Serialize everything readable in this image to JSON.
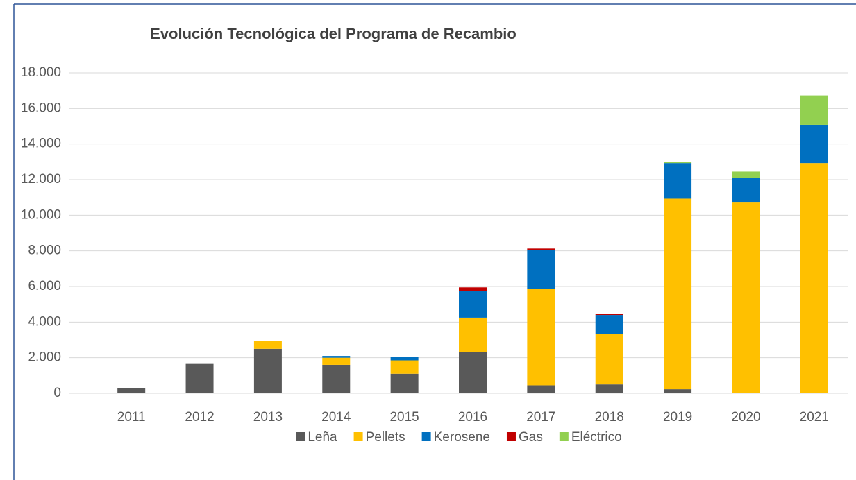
{
  "chart_data": {
    "type": "bar",
    "stacked": true,
    "title": "Evolución Tecnológica del Programa de Recambio",
    "categories": [
      "2011",
      "2012",
      "2013",
      "2014",
      "2015",
      "2016",
      "2017",
      "2018",
      "2019",
      "2020",
      "2021"
    ],
    "series": [
      {
        "name": "Leña",
        "color": "#595959",
        "values": [
          300,
          1650,
          2500,
          1600,
          1100,
          2300,
          450,
          500,
          230,
          0,
          0
        ]
      },
      {
        "name": "Pellets",
        "color": "#ffc000",
        "values": [
          0,
          0,
          450,
          400,
          750,
          1950,
          5400,
          2850,
          10700,
          10750,
          12930
        ]
      },
      {
        "name": "Kerosene",
        "color": "#0070c0",
        "values": [
          0,
          0,
          0,
          100,
          200,
          1500,
          2200,
          1050,
          2000,
          1350,
          2150
        ]
      },
      {
        "name": "Gas",
        "color": "#c00000",
        "values": [
          0,
          0,
          0,
          0,
          0,
          200,
          80,
          80,
          0,
          0,
          0
        ]
      },
      {
        "name": "Eléctrico",
        "color": "#92d050",
        "values": [
          0,
          0,
          0,
          0,
          0,
          0,
          0,
          0,
          50,
          350,
          1650
        ]
      }
    ],
    "ylim": [
      0,
      18000
    ],
    "yticks": [
      0,
      {
        "value": 2000,
        "label": "2.000"
      },
      {
        "value": 4000,
        "label": "4.000"
      },
      {
        "value": 6000,
        "label": "6.000"
      },
      {
        "value": 8000,
        "label": "8.000"
      },
      {
        "value": 10000,
        "label": "10.000"
      },
      {
        "value": 12000,
        "label": "12.000"
      },
      {
        "value": 14000,
        "label": "14.000"
      },
      {
        "value": 16000,
        "label": "16.000"
      },
      {
        "value": 18000,
        "label": "18.000"
      }
    ],
    "grid": true,
    "legend": "bottom"
  }
}
